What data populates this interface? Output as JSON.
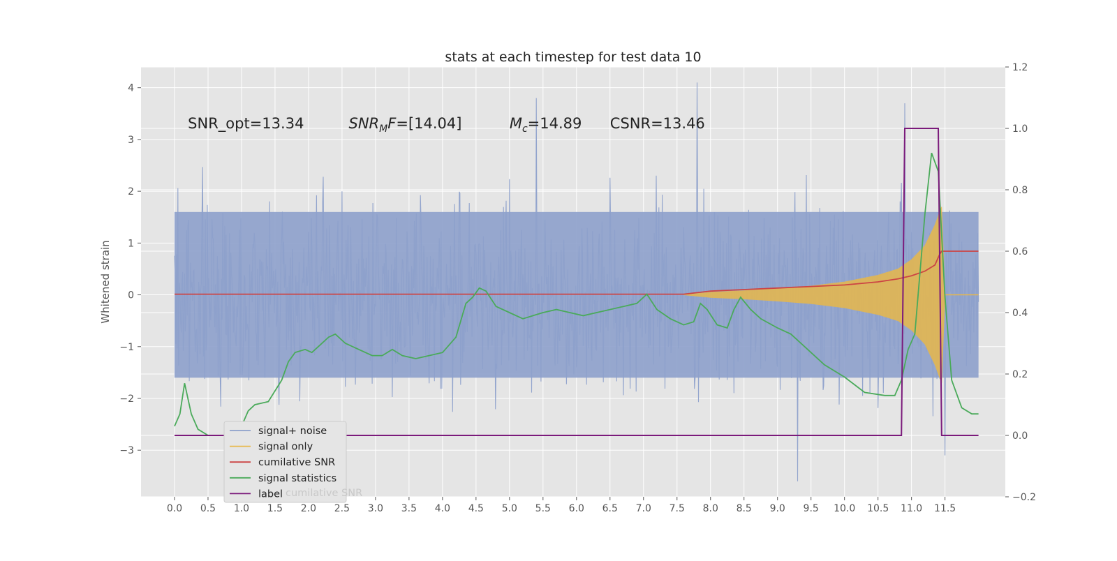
{
  "chart_data": {
    "type": "line",
    "title": "stats at each timestep for test data 10",
    "ylabel": "Whitened strain",
    "x_ticks": [
      "0.0",
      "0.5",
      "1.0",
      "1.5",
      "2.0",
      "2.5",
      "3.0",
      "3.5",
      "4.0",
      "4.5",
      "5.0",
      "5.5",
      "6.0",
      "6.5",
      "7.0",
      "7.5",
      "8.0",
      "8.5",
      "9.0",
      "9.5",
      "10.0",
      "10.5",
      "11.0",
      "11.5"
    ],
    "xlim": [
      -0.5,
      12.4
    ],
    "ylim_left": [
      -3.9,
      4.4
    ],
    "y_ticks_left": [
      "−3",
      "−2",
      "−1",
      "0",
      "1",
      "2",
      "3",
      "4"
    ],
    "ylim_right": [
      -0.2,
      1.2
    ],
    "y_ticks_right": [
      "−0.2",
      "0.0",
      "0.2",
      "0.4",
      "0.6",
      "0.8",
      "1.0",
      "1.2"
    ],
    "grid": true,
    "legend_position": "lower-left",
    "annotations": [
      {
        "text": "SNR_opt=13.34",
        "x": 0.2
      },
      {
        "text": "SNR_MF=[14.04]",
        "x": 2.6
      },
      {
        "text": "M_c=14.89",
        "x": 5.0
      },
      {
        "text": "CSNR=13.46",
        "x": 6.5
      }
    ],
    "series": [
      {
        "name": "signal+ noise",
        "axis": "left",
        "color": "#8da0cb",
        "description_envelope": {
          "x_range": [
            0.0,
            12.0
          ],
          "typical_amplitude": 1.6,
          "max_peaks": [
            [
              5.4,
              3.8
            ],
            [
              7.8,
              4.1
            ],
            [
              9.3,
              -3.6
            ],
            [
              10.9,
              3.7
            ],
            [
              11.5,
              -3.1
            ],
            [
              6.0,
              0.9
            ],
            [
              6.0,
              -1.4
            ]
          ]
        }
      },
      {
        "name": "signal only",
        "axis": "left",
        "color": "#e8b84a",
        "x": [
          7.6,
          8.0,
          8.5,
          9.0,
          9.5,
          10.0,
          10.5,
          10.8,
          11.0,
          11.2,
          11.35,
          11.45,
          11.5
        ],
        "amplitude": [
          0.0,
          0.05,
          0.08,
          0.12,
          0.17,
          0.25,
          0.38,
          0.5,
          0.68,
          0.95,
          1.35,
          1.7,
          0.0
        ]
      },
      {
        "name": "cumilative SNR",
        "axis": "right",
        "color": "#cc4444",
        "x": [
          0.0,
          7.6,
          8.0,
          8.5,
          9.0,
          9.5,
          10.0,
          10.5,
          10.8,
          11.0,
          11.2,
          11.35,
          11.42,
          11.45,
          12.0
        ],
        "y": [
          0.46,
          0.46,
          0.47,
          0.475,
          0.48,
          0.485,
          0.49,
          0.5,
          0.51,
          0.52,
          0.535,
          0.555,
          0.59,
          0.6,
          0.6
        ]
      },
      {
        "name": "signal statistics",
        "axis": "right",
        "color": "#4aaa5a",
        "x": [
          0.0,
          0.08,
          0.15,
          0.25,
          0.35,
          0.5,
          0.7,
          0.9,
          1.0,
          1.1,
          1.2,
          1.4,
          1.6,
          1.7,
          1.8,
          1.95,
          2.05,
          2.15,
          2.3,
          2.4,
          2.55,
          2.75,
          2.95,
          3.1,
          3.25,
          3.4,
          3.6,
          3.8,
          4.0,
          4.2,
          4.35,
          4.45,
          4.55,
          4.65,
          4.8,
          5.0,
          5.2,
          5.35,
          5.5,
          5.7,
          5.9,
          6.1,
          6.3,
          6.5,
          6.7,
          6.9,
          7.05,
          7.2,
          7.4,
          7.6,
          7.75,
          7.85,
          7.95,
          8.1,
          8.25,
          8.35,
          8.45,
          8.6,
          8.75,
          9.0,
          9.2,
          9.45,
          9.7,
          10.0,
          10.3,
          10.6,
          10.75,
          10.85,
          10.95,
          11.05,
          11.1,
          11.2,
          11.3,
          11.4,
          11.5,
          11.6,
          11.75,
          11.9,
          12.0
        ],
        "y": [
          0.03,
          0.07,
          0.17,
          0.07,
          0.02,
          0.0,
          0.0,
          0.0,
          0.03,
          0.08,
          0.1,
          0.11,
          0.18,
          0.24,
          0.27,
          0.28,
          0.27,
          0.29,
          0.32,
          0.33,
          0.3,
          0.28,
          0.26,
          0.26,
          0.28,
          0.26,
          0.25,
          0.26,
          0.27,
          0.32,
          0.43,
          0.45,
          0.48,
          0.47,
          0.42,
          0.4,
          0.38,
          0.39,
          0.4,
          0.41,
          0.4,
          0.39,
          0.4,
          0.41,
          0.42,
          0.43,
          0.46,
          0.41,
          0.38,
          0.36,
          0.37,
          0.43,
          0.41,
          0.36,
          0.35,
          0.41,
          0.45,
          0.41,
          0.38,
          0.35,
          0.33,
          0.28,
          0.23,
          0.19,
          0.14,
          0.13,
          0.13,
          0.18,
          0.28,
          0.33,
          0.46,
          0.72,
          0.92,
          0.86,
          0.45,
          0.18,
          0.09,
          0.07,
          0.07
        ]
      },
      {
        "name": "label",
        "axis": "right",
        "color": "#7b1a7b",
        "x": [
          0.0,
          10.85,
          10.9,
          11.4,
          11.45,
          12.0
        ],
        "y": [
          0.0,
          0.0,
          1.0,
          1.0,
          0.0,
          0.0
        ]
      }
    ],
    "legend_overlap_text": "cumilative SNR"
  }
}
